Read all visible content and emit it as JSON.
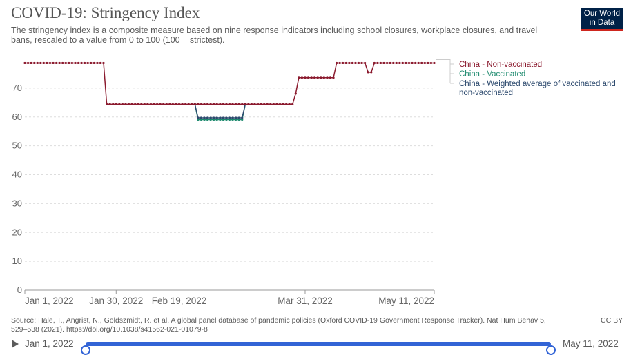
{
  "header": {
    "title": "COVID-19: Stringency Index",
    "subtitle": "The stringency index is a composite measure based on nine response indicators including school closures, workplace closures, and travel bans, rescaled to a value from 0 to 100 (100 = strictest).",
    "logo_line1": "Our World",
    "logo_line2": "in Data"
  },
  "colors": {
    "non_vaccinated": "#8b1a2e",
    "vaccinated": "#1d8a6e",
    "weighted": "#2d4a6e",
    "grid": "#dddddd",
    "slider": "#3264d6"
  },
  "chart_data": {
    "type": "line",
    "title": "COVID-19: Stringency Index",
    "xlabel": "",
    "ylabel": "",
    "ylim": [
      0,
      80
    ],
    "xlim": [
      "2022-01-01",
      "2022-05-11"
    ],
    "yticks": [
      0,
      10,
      20,
      30,
      40,
      50,
      60,
      70
    ],
    "xticks": [
      "Jan 1, 2022",
      "Jan 30, 2022",
      "Feb 19, 2022",
      "Mar 31, 2022",
      "May 11, 2022"
    ],
    "xtick_dates": [
      "2022-01-01",
      "2022-01-30",
      "2022-02-19",
      "2022-03-31",
      "2022-05-11"
    ],
    "grid": true,
    "legend_position": "right",
    "series": [
      {
        "name": "China - Non-vaccinated",
        "color": "#8b1a2e",
        "values": [
          [
            "2022-01-01",
            78.7
          ],
          [
            "2022-01-26",
            78.7
          ],
          [
            "2022-01-27",
            64.4
          ],
          [
            "2022-03-27",
            64.4
          ],
          [
            "2022-03-28",
            68.1
          ],
          [
            "2022-03-29",
            73.6
          ],
          [
            "2022-04-09",
            73.6
          ],
          [
            "2022-04-10",
            78.7
          ],
          [
            "2022-04-19",
            78.7
          ],
          [
            "2022-04-20",
            75.5
          ],
          [
            "2022-04-21",
            75.5
          ],
          [
            "2022-04-22",
            78.7
          ],
          [
            "2022-05-11",
            78.7
          ]
        ]
      },
      {
        "name": "China - Vaccinated",
        "color": "#1d8a6e",
        "values": [
          [
            "2022-02-24",
            64.4
          ],
          [
            "2022-02-25",
            59.1
          ],
          [
            "2022-03-11",
            59.1
          ],
          [
            "2022-03-12",
            64.4
          ]
        ]
      },
      {
        "name": "China - Weighted average of vaccinated and non-vaccinated",
        "color": "#2d4a6e",
        "values": [
          [
            "2022-02-24",
            64.4
          ],
          [
            "2022-02-25",
            59.7
          ],
          [
            "2022-03-11",
            59.7
          ],
          [
            "2022-03-12",
            64.4
          ]
        ]
      }
    ]
  },
  "source": {
    "text": "Source: Hale, T., Angrist, N., Goldszmidt, R. et al. A global panel database of pandemic policies (Oxford COVID-19 Government Response Tracker). Nat Hum Behav 5, 529–538 (2021). https://doi.org/10.1038/s41562-021-01079-8",
    "license": "CC BY"
  },
  "timeline": {
    "start_label": "Jan 1, 2022",
    "end_label": "May 11, 2022",
    "start_value": 0,
    "end_value": 1
  }
}
